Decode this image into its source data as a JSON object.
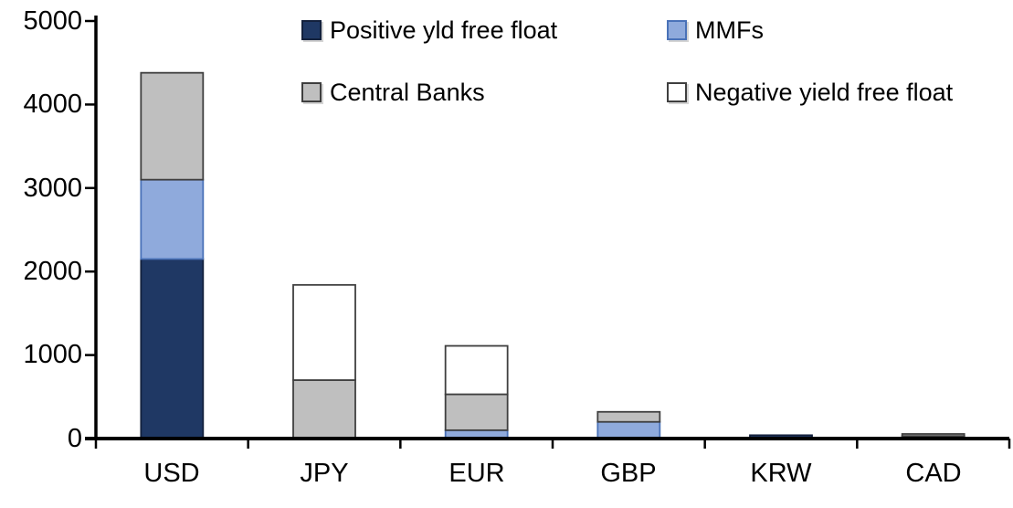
{
  "chart_data": {
    "type": "bar",
    "stacked": true,
    "title": "",
    "xlabel": "",
    "ylabel": "",
    "categories": [
      "USD",
      "JPY",
      "EUR",
      "GBP",
      "KRW",
      "CAD"
    ],
    "series": [
      {
        "name": "Positive yld free float",
        "color": "#1F3864",
        "border_color": "#13213D",
        "values": [
          2150,
          0,
          0,
          0,
          40,
          30
        ]
      },
      {
        "name": "MMFs",
        "color": "#8FAADC",
        "border_color": "#4A72B8",
        "values": [
          950,
          0,
          100,
          200,
          0,
          0
        ]
      },
      {
        "name": "Central Banks",
        "color": "#BFBFBF",
        "border_color": "#3F3F3F",
        "values": [
          1280,
          700,
          430,
          120,
          0,
          25
        ]
      },
      {
        "name": "Negative yield free float",
        "color": "#FFFFFF",
        "border_color": "#3F3F3F",
        "values": [
          0,
          1140,
          580,
          0,
          0,
          0
        ]
      }
    ],
    "totals": [
      4380,
      1840,
      1110,
      320,
      40,
      55
    ],
    "ylim": [
      0,
      5000
    ],
    "y_ticks": [
      "0",
      "1000",
      "2000",
      "3000",
      "4000",
      "5000"
    ],
    "grid": false,
    "legend_position": "inside-top, two columns, two rows",
    "axis_color": "#000000",
    "background": "#FFFFFF"
  }
}
